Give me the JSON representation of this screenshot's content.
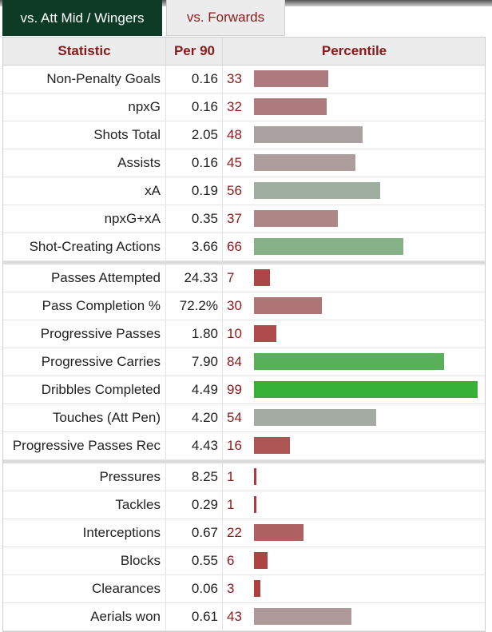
{
  "tabs": [
    {
      "label": "vs. Att Mid / Wingers",
      "active": true
    },
    {
      "label": "vs. Forwards",
      "active": false
    }
  ],
  "headers": {
    "statistic": "Statistic",
    "per90": "Per 90",
    "percentile": "Percentile"
  },
  "groups": [
    [
      {
        "stat": "Non-Penalty Goals",
        "per90": "0.16",
        "pct": "33",
        "pct_value": 33,
        "color": "#ad7b7b"
      },
      {
        "stat": "npxG",
        "per90": "0.16",
        "pct": "32",
        "pct_value": 32,
        "color": "#ad7b7b"
      },
      {
        "stat": "Shots Total",
        "per90": "2.05",
        "pct": "48",
        "pct_value": 48,
        "color": "#aaa1a1"
      },
      {
        "stat": "Assists",
        "per90": "0.16",
        "pct": "45",
        "pct_value": 45,
        "color": "#ad9d9d"
      },
      {
        "stat": "xA",
        "per90": "0.19",
        "pct": "56",
        "pct_value": 56,
        "color": "#9fae9f"
      },
      {
        "stat": "npxG+xA",
        "per90": "0.35",
        "pct": "37",
        "pct_value": 37,
        "color": "#ad8686"
      },
      {
        "stat": "Shot-Creating Actions",
        "per90": "3.66",
        "pct": "66",
        "pct_value": 66,
        "color": "#86b086"
      }
    ],
    [
      {
        "stat": "Passes Attempted",
        "per90": "24.33",
        "pct": "7",
        "pct_value": 7,
        "color": "#ad4646"
      },
      {
        "stat": "Pass Completion %",
        "per90": "72.2%",
        "pct": "30",
        "pct_value": 30,
        "color": "#ad7575"
      },
      {
        "stat": "Progressive Passes",
        "per90": "1.80",
        "pct": "10",
        "pct_value": 10,
        "color": "#ad4a4a"
      },
      {
        "stat": "Progressive Carries",
        "per90": "7.90",
        "pct": "84",
        "pct_value": 84,
        "color": "#58b058"
      },
      {
        "stat": "Dribbles Completed",
        "per90": "4.49",
        "pct": "99",
        "pct_value": 99,
        "color": "#37b037"
      },
      {
        "stat": "Touches (Att Pen)",
        "per90": "4.20",
        "pct": "54",
        "pct_value": 54,
        "color": "#a3aba3"
      },
      {
        "stat": "Progressive Passes Rec",
        "per90": "4.43",
        "pct": "16",
        "pct_value": 16,
        "color": "#ad5454"
      }
    ],
    [
      {
        "stat": "Pressures",
        "per90": "8.25",
        "pct": "1",
        "pct_value": 1,
        "color": "#ad3c3c"
      },
      {
        "stat": "Tackles",
        "per90": "0.29",
        "pct": "1",
        "pct_value": 1,
        "color": "#ad3c3c"
      },
      {
        "stat": "Interceptions",
        "per90": "0.67",
        "pct": "22",
        "pct_value": 22,
        "color": "#ad6161"
      },
      {
        "stat": "Blocks",
        "per90": "0.55",
        "pct": "6",
        "pct_value": 6,
        "color": "#ad4444"
      },
      {
        "stat": "Clearances",
        "per90": "0.06",
        "pct": "3",
        "pct_value": 3,
        "color": "#ad3f3f"
      },
      {
        "stat": "Aerials won",
        "per90": "0.61",
        "pct": "43",
        "pct_value": 43,
        "color": "#ad9999"
      }
    ]
  ]
}
